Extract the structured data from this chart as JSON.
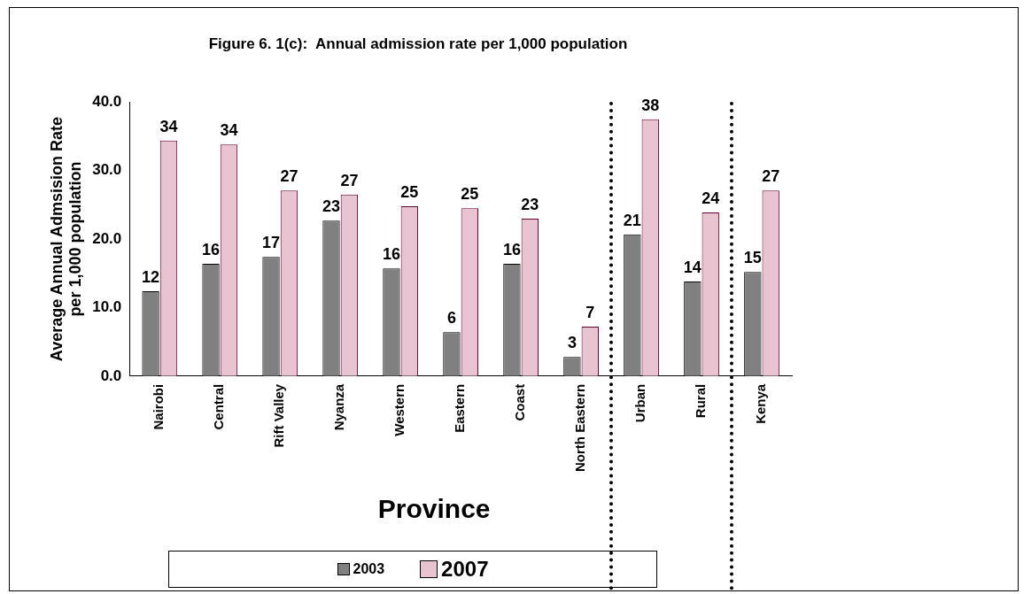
{
  "chart_data": {
    "type": "bar",
    "title": "Figure 6. 1(c):  Annual admission rate per 1,000 population",
    "xlabel": "Province",
    "ylabel": "Average Annual Admsision Rate per 1,000 population",
    "categories": [
      "Nairobi",
      "Central",
      "Rift Valley",
      "Nyanza",
      "Western",
      "Eastern",
      "Coast",
      "North Eastern",
      "Urban",
      "Rural",
      "Kenya"
    ],
    "series": [
      {
        "name": "2003",
        "color": "#808080",
        "values": [
          12.4,
          16.4,
          17.4,
          22.7,
          15.7,
          6.4,
          16.4,
          2.8,
          20.7,
          13.8,
          15.2
        ],
        "value_labels": [
          "12",
          "16",
          "17",
          "23",
          "16",
          "6",
          "16",
          "3",
          "21",
          "14",
          "15"
        ]
      },
      {
        "name": "2007",
        "color": "#e8c4d0",
        "values": [
          34.4,
          33.8,
          27.1,
          26.5,
          24.8,
          24.5,
          23.0,
          7.2,
          37.5,
          23.9,
          27.1
        ],
        "value_labels": [
          "34",
          "34",
          "27",
          "27",
          "25",
          "25",
          "23",
          "7",
          "38",
          "24",
          "27"
        ]
      }
    ],
    "ylim": [
      0,
      40
    ],
    "yticks": [
      {
        "value": 0,
        "label": "0.0"
      },
      {
        "value": 10,
        "label": "10.0"
      },
      {
        "value": 20,
        "label": "20.0"
      },
      {
        "value": 30,
        "label": "30.0"
      },
      {
        "value": 40,
        "label": "40.0"
      }
    ],
    "grid": false,
    "legend": "bottom left"
  }
}
